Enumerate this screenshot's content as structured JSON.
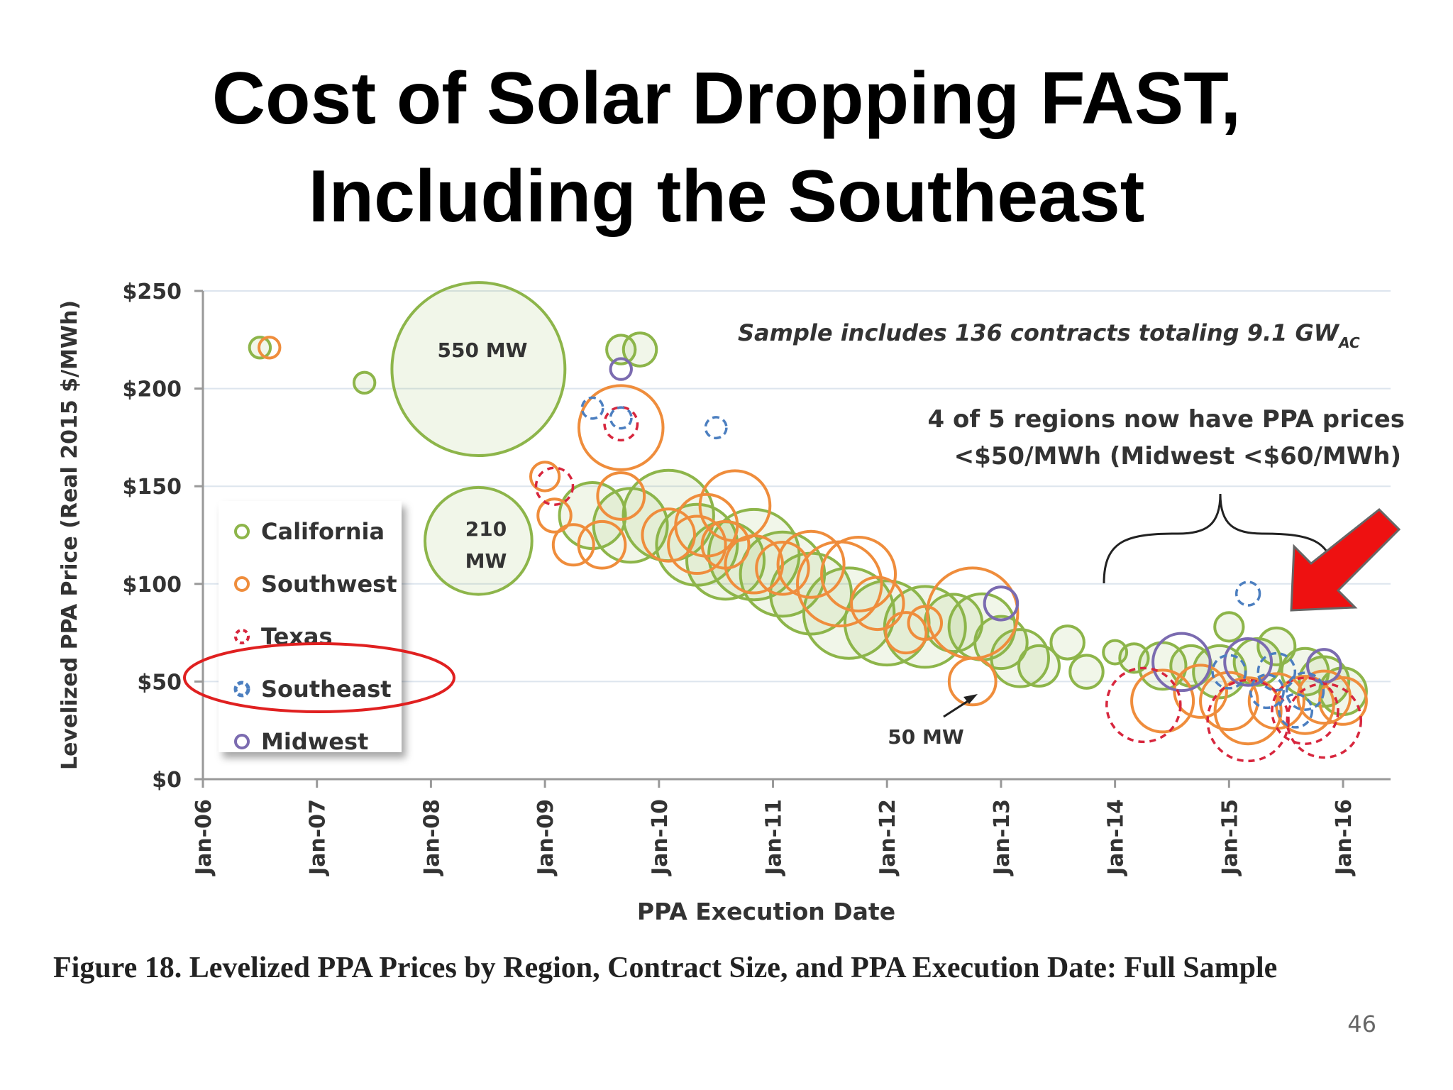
{
  "slide": {
    "title_line1": "Cost of Solar Dropping FAST,",
    "title_line2": "Including the Southeast",
    "caption": "Figure 18. Levelized PPA Prices by Region, Contract Size, and PPA Execution Date: Full Sample",
    "page_number": "46"
  },
  "colors": {
    "California": "#8db54a",
    "Southwest": "#ef8d3c",
    "Texas": "#d7263d",
    "Southeast": "#4c7fc0",
    "Midwest": "#7b6bb0",
    "highlight_ellipse": "#e02020",
    "arrow": "#ee1111"
  },
  "chart_data": {
    "type": "scatter",
    "subtype": "bubble",
    "xlabel": "PPA Execution Date",
    "ylabel": "Levelized PPA Price (Real 2015 $/MWh)",
    "x_ticks": [
      "Jan-06",
      "Jan-07",
      "Jan-08",
      "Jan-09",
      "Jan-10",
      "Jan-11",
      "Jan-12",
      "Jan-13",
      "Jan-14",
      "Jan-15",
      "Jan-16"
    ],
    "xlim": [
      "2006-01",
      "2016-06"
    ],
    "y_ticks": [
      "$0",
      "$50",
      "$100",
      "$150",
      "$200",
      "$250"
    ],
    "ylim": [
      0,
      250
    ],
    "grid": "horizontal",
    "legend_position": "left",
    "annotations": {
      "sample_note_main": "Sample includes 136 contracts totaling 9.1 GW",
      "sample_note_sub": "AC",
      "regions_note_line1": "4 of 5 regions now have PPA prices",
      "regions_note_line2": "<$50/MWh (Midwest <$60/MWh)",
      "label_550": "550 MW",
      "label_210_a": "210",
      "label_210_b": "MW",
      "label_50": "50 MW"
    },
    "series": [
      {
        "name": "California",
        "points": [
          [
            "2006-07",
            221,
            8
          ],
          [
            "2007-06",
            203,
            8
          ],
          [
            "2008-06",
            210,
            550
          ],
          [
            "2008-06",
            122,
            210
          ],
          [
            "2009-09",
            220,
            15
          ],
          [
            "2009-11",
            220,
            20
          ],
          [
            "2009-06",
            135,
            80
          ],
          [
            "2009-10",
            130,
            100
          ],
          [
            "2010-02",
            135,
            150
          ],
          [
            "2010-05",
            120,
            120
          ],
          [
            "2010-08",
            112,
            110
          ],
          [
            "2010-11",
            115,
            150
          ],
          [
            "2011-02",
            105,
            130
          ],
          [
            "2011-05",
            95,
            120
          ],
          [
            "2011-09",
            85,
            150
          ],
          [
            "2012-01",
            80,
            130
          ],
          [
            "2012-05",
            78,
            120
          ],
          [
            "2012-08",
            80,
            60
          ],
          [
            "2012-11",
            78,
            80
          ],
          [
            "2013-01",
            70,
            50
          ],
          [
            "2013-03",
            62,
            60
          ],
          [
            "2013-05",
            58,
            30
          ],
          [
            "2013-08",
            70,
            20
          ],
          [
            "2013-10",
            55,
            20
          ],
          [
            "2014-01",
            65,
            10
          ],
          [
            "2014-03",
            62,
            15
          ],
          [
            "2014-06",
            58,
            40
          ],
          [
            "2014-09",
            58,
            30
          ],
          [
            "2014-12",
            55,
            50
          ],
          [
            "2015-01",
            78,
            15
          ],
          [
            "2015-04",
            60,
            40
          ],
          [
            "2015-06",
            68,
            25
          ],
          [
            "2015-09",
            55,
            40
          ],
          [
            "2015-11",
            50,
            45
          ],
          [
            "2016-01",
            45,
            40
          ]
        ]
      },
      {
        "name": "Southwest",
        "points": [
          [
            "2006-08",
            221,
            8
          ],
          [
            "2009-09",
            180,
            130
          ],
          [
            "2009-01",
            155,
            15
          ],
          [
            "2009-02",
            135,
            20
          ],
          [
            "2009-04",
            120,
            30
          ],
          [
            "2009-07",
            120,
            40
          ],
          [
            "2009-09",
            145,
            40
          ],
          [
            "2010-02",
            125,
            50
          ],
          [
            "2010-06",
            130,
            70
          ],
          [
            "2010-09",
            140,
            90
          ],
          [
            "2010-05",
            120,
            60
          ],
          [
            "2010-08",
            120,
            40
          ],
          [
            "2010-11",
            110,
            60
          ],
          [
            "2011-02",
            108,
            50
          ],
          [
            "2011-05",
            110,
            80
          ],
          [
            "2011-08",
            100,
            130
          ],
          [
            "2011-10",
            105,
            100
          ],
          [
            "2011-12",
            90,
            50
          ],
          [
            "2012-03",
            75,
            30
          ],
          [
            "2012-05",
            80,
            20
          ],
          [
            "2012-10",
            85,
            150
          ],
          [
            "2012-10",
            50,
            40
          ],
          [
            "2014-06",
            40,
            70
          ],
          [
            "2014-10",
            45,
            50
          ],
          [
            "2015-01",
            40,
            60
          ],
          [
            "2015-03",
            35,
            80
          ],
          [
            "2015-06",
            40,
            55
          ],
          [
            "2015-09",
            38,
            60
          ],
          [
            "2015-11",
            42,
            50
          ],
          [
            "2016-01",
            40,
            40
          ]
        ]
      },
      {
        "name": "Texas",
        "points": [
          [
            "2009-09",
            182,
            20
          ],
          [
            "2009-02",
            150,
            25
          ],
          [
            "2014-04",
            38,
            100
          ],
          [
            "2015-03",
            30,
            120
          ],
          [
            "2015-09",
            35,
            80
          ],
          [
            "2015-11",
            30,
            100
          ]
        ]
      },
      {
        "name": "Southeast",
        "points": [
          [
            "2009-06",
            190,
            8
          ],
          [
            "2009-09",
            185,
            8
          ],
          [
            "2010-07",
            180,
            8
          ],
          [
            "2015-03",
            95,
            10
          ],
          [
            "2015-01",
            55,
            20
          ],
          [
            "2015-05",
            45,
            20
          ],
          [
            "2015-06",
            55,
            25
          ],
          [
            "2015-09",
            45,
            25
          ],
          [
            "2015-08",
            35,
            20
          ]
        ]
      },
      {
        "name": "Midwest",
        "points": [
          [
            "2009-09",
            210,
            8
          ],
          [
            "2013-01",
            90,
            20
          ],
          [
            "2014-08",
            60,
            60
          ],
          [
            "2015-03",
            60,
            40
          ],
          [
            "2015-11",
            58,
            20
          ]
        ]
      }
    ]
  }
}
